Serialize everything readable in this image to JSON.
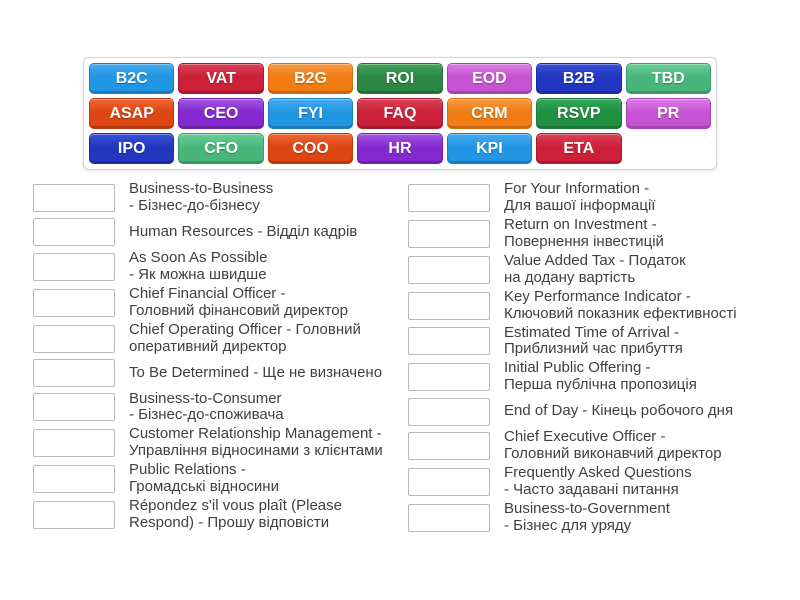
{
  "palette": {
    "blue": {
      "top": "#47aaf0",
      "base": "#2196e3",
      "border": "#1a7ec4"
    },
    "crimson": {
      "top": "#da4156",
      "base": "#cb2038",
      "border": "#ab1b30"
    },
    "orange": {
      "top": "#f89a42",
      "base": "#f07c13",
      "border": "#d96e0e"
    },
    "forest": {
      "top": "#3fa35a",
      "base": "#2b8743",
      "border": "#237138"
    },
    "orchid": {
      "top": "#dc7ce4",
      "base": "#c654d2",
      "border": "#ad3fba"
    },
    "navy": {
      "top": "#3a50d8",
      "base": "#2236c0",
      "border": "#1b2ba3"
    },
    "seagreen": {
      "top": "#66cf97",
      "base": "#48b67a",
      "border": "#3a9c67"
    },
    "orangered": {
      "top": "#ee6634",
      "base": "#dd4512",
      "border": "#bc3c10"
    },
    "purple": {
      "top": "#a055e2",
      "base": "#8429cf",
      "border": "#7021b3"
    },
    "green": {
      "top": "#35a85b",
      "base": "#1f8f42",
      "border": "#1a7a38"
    }
  },
  "tiles": {
    "rows": [
      [
        {
          "label": "B2C",
          "color": "blue"
        },
        {
          "label": "VAT",
          "color": "crimson"
        },
        {
          "label": "B2G",
          "color": "orange"
        },
        {
          "label": "ROI",
          "color": "forest"
        },
        {
          "label": "EOD",
          "color": "orchid"
        },
        {
          "label": "B2B",
          "color": "navy"
        },
        {
          "label": "TBD",
          "color": "seagreen"
        }
      ],
      [
        {
          "label": "ASAP",
          "color": "orangered"
        },
        {
          "label": "CEO",
          "color": "purple"
        },
        {
          "label": "FYI",
          "color": "blue"
        },
        {
          "label": "FAQ",
          "color": "crimson"
        },
        {
          "label": "CRM",
          "color": "orange"
        },
        {
          "label": "RSVP",
          "color": "green"
        },
        {
          "label": "PR",
          "color": "orchid"
        }
      ],
      [
        {
          "label": "IPO",
          "color": "navy"
        },
        {
          "label": "CFO",
          "color": "seagreen"
        },
        {
          "label": "COO",
          "color": "orangered"
        },
        {
          "label": "HR",
          "color": "purple"
        },
        {
          "label": "KPI",
          "color": "blue"
        },
        {
          "label": "ETA",
          "color": "crimson"
        }
      ]
    ]
  },
  "definitions": {
    "left": [
      {
        "text": "Business-to-Business\n- Бізнес-до-бізнесу"
      },
      {
        "text": "Human Resources - Відділ кадрів"
      },
      {
        "text": "As Soon As Possible\n- Як можна швидше"
      },
      {
        "text": "Chief Financial Officer -\nГоловний фінансовий директор"
      },
      {
        "text": "Chief Operating Officer - Головний\nоперативний директор"
      },
      {
        "text": "To Be Determined - Ще не визначено"
      },
      {
        "text": "Business-to-Consumer\n- Бізнес-до-споживача"
      },
      {
        "text": "Customer Relationship Management -\nУправління відносинами з клієнтами"
      },
      {
        "text": "Public Relations -\nГромадські відносини"
      },
      {
        "text": "Répondez s'il vous plaît (Please\nRespond) - Прошу відповісти"
      }
    ],
    "right": [
      {
        "text": "For Your Information -\nДля вашої інформації"
      },
      {
        "text": "Return on Investment -\nПовернення інвестицій"
      },
      {
        "text": "Value Added Tax - Податок\nна додану вартість"
      },
      {
        "text": "Key Performance Indicator -\nКлючовий показник ефективності"
      },
      {
        "text": "Estimated Time of Arrival -\nПриблизний час прибуття"
      },
      {
        "text": "Initial Public Offering -\nПерша публічна пропозиція"
      },
      {
        "text": "End of Day - Кінець робочого дня"
      },
      {
        "text": "Chief Executive Officer -\nГоловний виконавчий директор"
      },
      {
        "text": "Frequently Asked Questions\n- Часто задавані питання"
      },
      {
        "text": "Business-to-Government\n- Бізнес для уряду"
      }
    ]
  }
}
